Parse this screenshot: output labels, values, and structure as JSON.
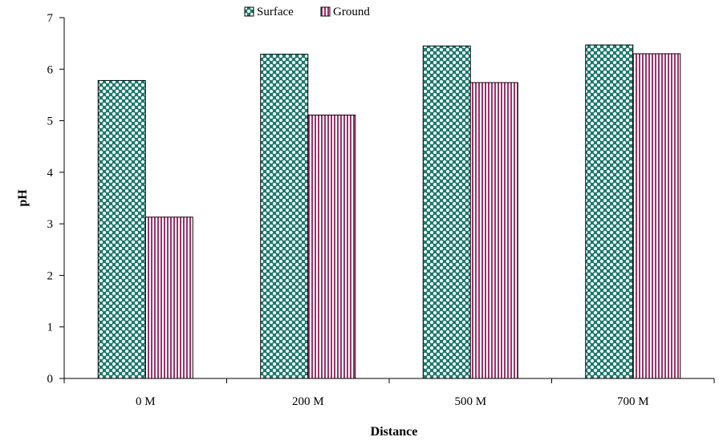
{
  "chart_data": {
    "type": "bar",
    "title": "",
    "xlabel": "Distance",
    "ylabel": "pH",
    "categories": [
      "0 M",
      "200 M",
      "500 M",
      "700 M"
    ],
    "series": [
      {
        "name": "Surface",
        "values": [
          5.78,
          6.29,
          6.45,
          6.47
        ],
        "color": "#1d7a6e",
        "pattern": "dots"
      },
      {
        "name": "Ground",
        "values": [
          3.13,
          5.11,
          5.74,
          6.3
        ],
        "color": "#a0306a",
        "pattern": "vertical-stripes"
      }
    ],
    "ylim": [
      0,
      7
    ],
    "yticks": [
      "0",
      "1",
      "2",
      "3",
      "4",
      "5",
      "6",
      "7"
    ],
    "grid": false,
    "legend_position": "top"
  }
}
